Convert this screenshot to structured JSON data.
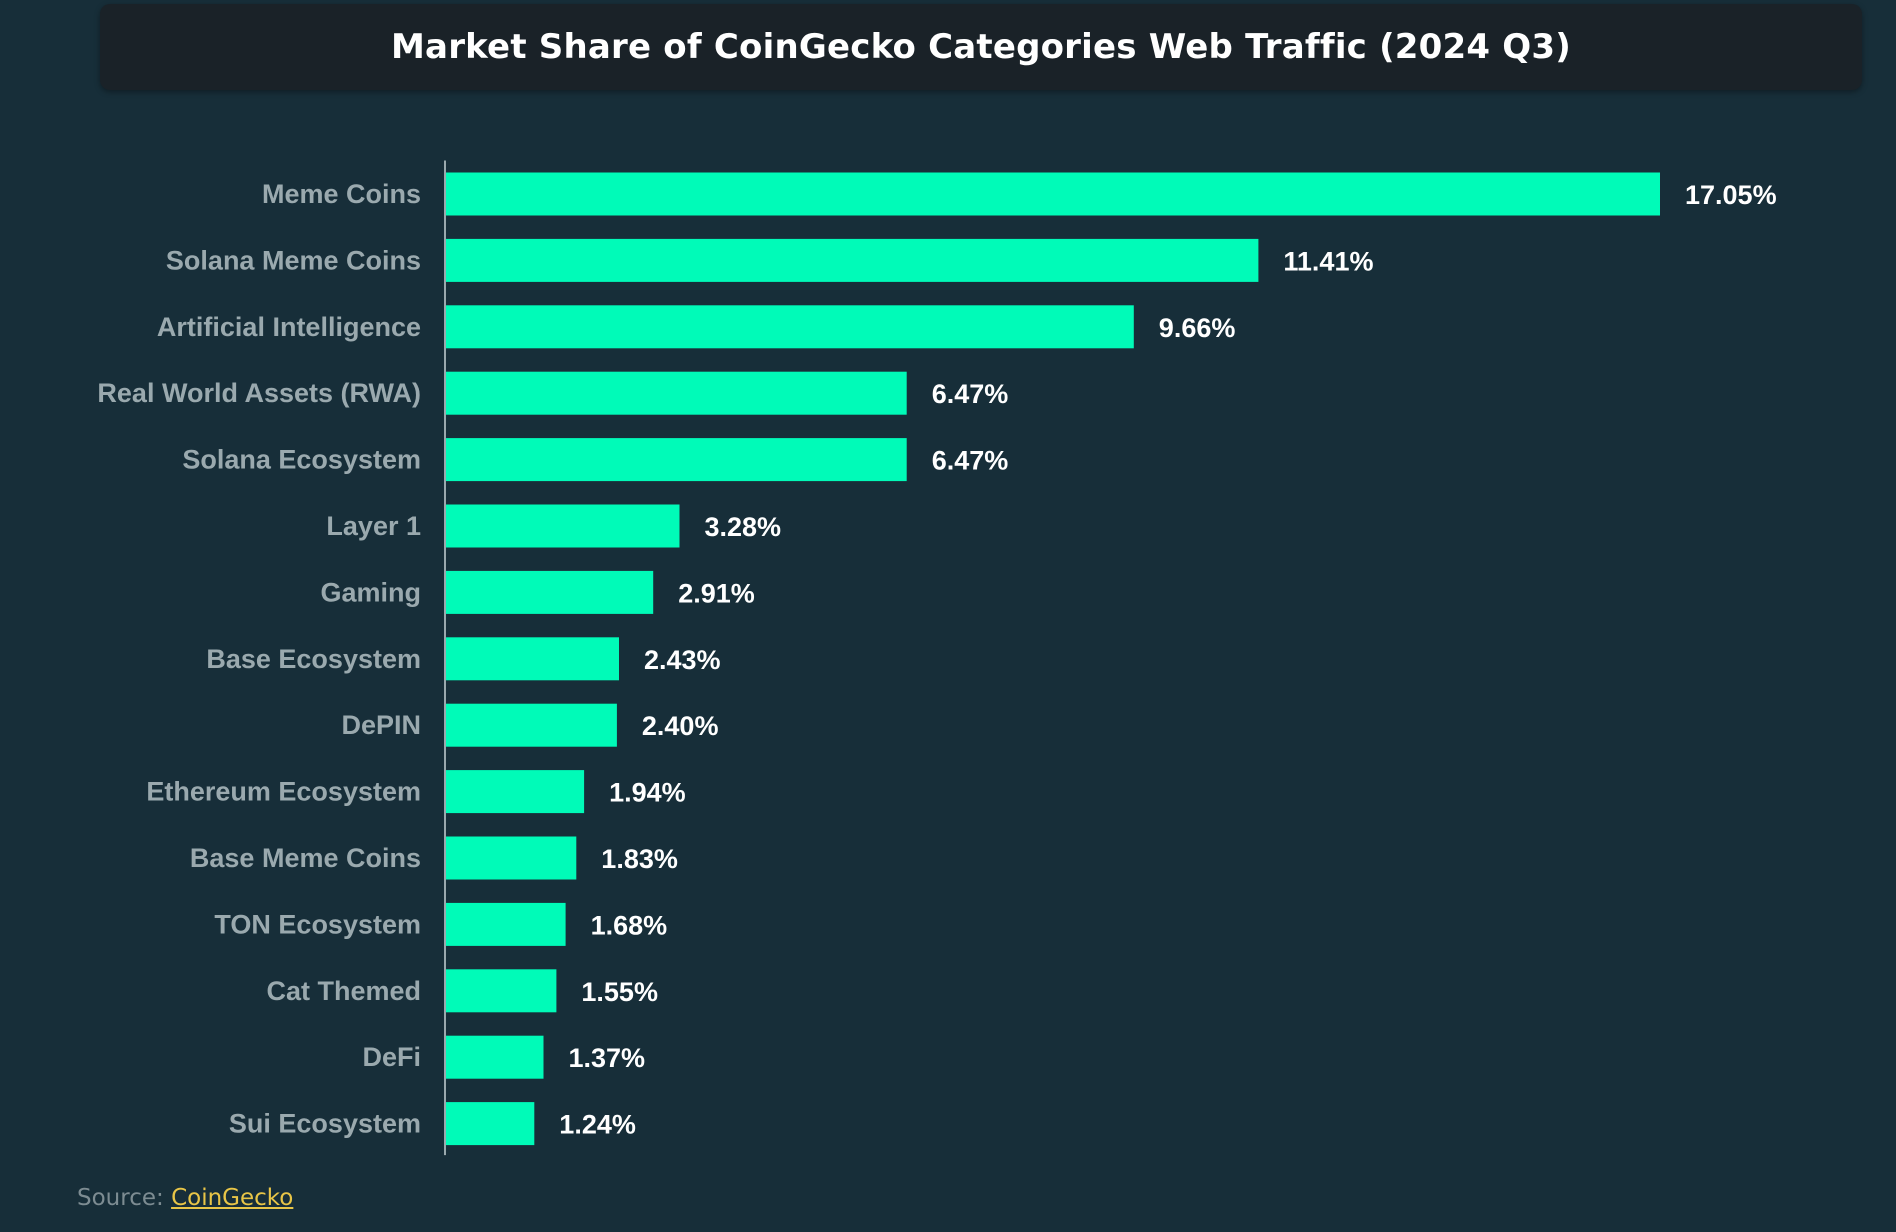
{
  "chart_data": {
    "type": "bar",
    "orientation": "horizontal",
    "title": "Market Share of CoinGecko Categories Web Traffic (2024 Q3)",
    "categories": [
      "Meme Coins",
      "Solana Meme Coins",
      "Artificial Intelligence",
      "Real World Assets (RWA)",
      "Solana Ecosystem",
      "Layer 1",
      "Gaming",
      "Base Ecosystem",
      "DePIN",
      "Ethereum Ecosystem",
      "Base Meme Coins",
      "TON Ecosystem",
      "Cat Themed",
      "DeFi",
      "Sui Ecosystem"
    ],
    "values": [
      17.05,
      11.41,
      9.66,
      6.47,
      6.47,
      3.28,
      2.91,
      2.43,
      2.4,
      1.94,
      1.83,
      1.68,
      1.55,
      1.37,
      1.24
    ],
    "value_labels": [
      "17.05%",
      "11.41%",
      "9.66%",
      "6.47%",
      "6.47%",
      "3.28%",
      "2.91%",
      "2.43%",
      "2.40%",
      "1.94%",
      "1.83%",
      "1.68%",
      "1.55%",
      "1.37%",
      "1.24%"
    ],
    "xlabel": "",
    "ylabel": "",
    "xlim": [
      0,
      17.05
    ],
    "grid": false,
    "legend": "none",
    "colors": {
      "bar": "#00fbb8",
      "axis": "#9aa9ae",
      "category_label": "#9aa9ae",
      "value_label": "#ffffff",
      "background": "#172e39",
      "title_background": "#1a2228"
    }
  },
  "source": {
    "prefix": "Source: ",
    "link_text": "CoinGecko"
  }
}
